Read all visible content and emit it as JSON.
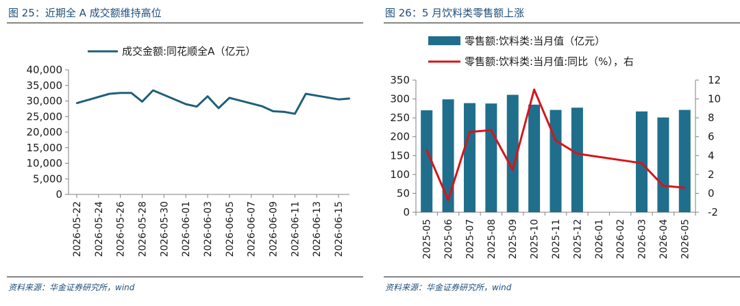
{
  "left": {
    "figure_title": "图 25：近期全 A 成交额维持高位",
    "source": "资料来源：华金证券研究所，wind",
    "chart_data": {
      "type": "line",
      "title": "",
      "xlabel": "",
      "ylabel": "",
      "ylim": [
        0,
        40000
      ],
      "yticks": [
        "0",
        "5,000",
        "10,000",
        "15,000",
        "20,000",
        "25,000",
        "30,000",
        "35,000",
        "40,000"
      ],
      "ytick_values": [
        0,
        5000,
        10000,
        15000,
        20000,
        25000,
        30000,
        35000,
        40000
      ],
      "x_tick_labels": [
        "2026-05-22",
        "2026-05-24",
        "2026-05-26",
        "2026-05-28",
        "2026-05-30",
        "2026-06-01",
        "2026-06-03",
        "2026-06-05",
        "2026-06-07",
        "2026-06-09",
        "2026-06-11",
        "2026-06-13",
        "2026-06-15"
      ],
      "legend_position": "top",
      "grid": false,
      "series": [
        {
          "name": "成交金额:同花顺全A（亿元）",
          "color": "#1f5f7a",
          "x": [
            "2026-05-22",
            "2026-05-25",
            "2026-05-26",
            "2026-05-27",
            "2026-05-28",
            "2026-05-29",
            "2026-06-01",
            "2026-06-02",
            "2026-06-03",
            "2026-06-04",
            "2026-06-05",
            "2026-06-08",
            "2026-06-09",
            "2026-06-10",
            "2026-06-11",
            "2026-06-12",
            "2026-06-15",
            "2026-06-16"
          ],
          "values": [
            29300,
            32300,
            32600,
            32600,
            29800,
            33400,
            29000,
            28200,
            31500,
            27700,
            31000,
            28300,
            26700,
            26500,
            25900,
            32300,
            30500,
            30800
          ]
        }
      ]
    }
  },
  "right": {
    "figure_title": "图 26：5 月饮料类零售额上涨",
    "source": "资料来源：华金证券研究所，wind",
    "chart_data": {
      "type": "bar",
      "title": "",
      "xlabel": "",
      "ylabel": "",
      "categories": [
        "2025-05",
        "2025-06",
        "2025-07",
        "2025-08",
        "2025-09",
        "2025-10",
        "2025-11",
        "2025-12",
        "2026-01",
        "2026-02",
        "2026-03",
        "2026-04",
        "2026-05"
      ],
      "ylim": [
        0,
        350
      ],
      "yticks": [
        "0",
        "50",
        "100",
        "150",
        "200",
        "250",
        "300",
        "350"
      ],
      "ytick_values": [
        0,
        50,
        100,
        150,
        200,
        250,
        300,
        350
      ],
      "y2lim": [
        -2,
        12
      ],
      "y2ticks": [
        "-2",
        "0",
        "2",
        "4",
        "6",
        "8",
        "10",
        "12"
      ],
      "y2tick_values": [
        -2,
        0,
        2,
        4,
        6,
        8,
        10,
        12
      ],
      "legend_position": "top",
      "grid": false,
      "series": [
        {
          "name": "零售额:饮料类:当月值（亿元）",
          "kind": "bar",
          "axis": "left",
          "color": "#1f6e8c",
          "values": [
            270,
            299,
            289,
            288,
            311,
            285,
            271,
            277,
            null,
            null,
            267,
            251,
            271
          ]
        },
        {
          "name": "零售额:饮料类:当月值:同比（%），右",
          "kind": "line",
          "axis": "right",
          "color": "#d7141a",
          "points": [
            {
              "x": "2025-05",
              "y": 4.6
            },
            {
              "x": "2025-06",
              "y": -0.7
            },
            {
              "x": "2025-07",
              "y": 6.5
            },
            {
              "x": "2025-08",
              "y": 6.7
            },
            {
              "x": "2025-09",
              "y": 2.5
            },
            {
              "x": "2025-10",
              "y": 11.0
            },
            {
              "x": "2025-11",
              "y": 5.6
            },
            {
              "x": "2025-12",
              "y": 4.2
            },
            {
              "x": "2026-03",
              "y": 3.2
            },
            {
              "x": "2026-04",
              "y": 0.8
            },
            {
              "x": "2026-05",
              "y": 0.6
            }
          ]
        }
      ]
    }
  }
}
